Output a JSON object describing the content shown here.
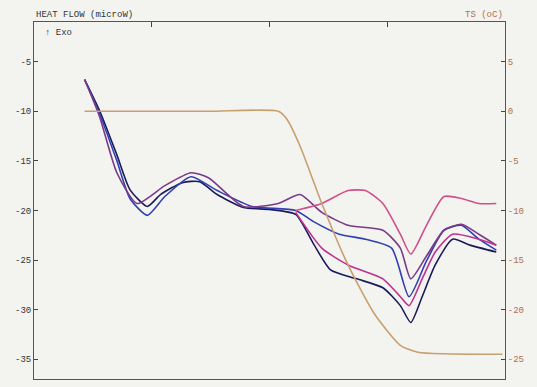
{
  "chart_data": {
    "type": "line",
    "ylabel": "HEAT FLOW (microW)",
    "y2label": "TS (oC)",
    "annotations": [
      "↑ Exo"
    ],
    "tick_labels": "y",
    "grid": false,
    "xlim": [
      0,
      108
    ],
    "xticks": [
      0,
      27,
      54,
      81,
      108
    ],
    "ylim": [
      -37,
      -1
    ],
    "yticks": [
      -5,
      -10,
      -15,
      -20,
      -25,
      -30,
      -35
    ],
    "y2lim": [
      -27,
      9
    ],
    "y2ticks": [
      5,
      0,
      -5,
      -10,
      -15,
      -20,
      -25
    ],
    "series": [
      {
        "color": "#c8a070",
        "axis": "y2",
        "x": [
          11.6,
          40,
          56,
          58,
          61,
          66,
          72,
          78,
          84,
          88,
          107.4
        ],
        "values": [
          0,
          0,
          0,
          -0.8,
          -3.5,
          -9.3,
          -15.5,
          -20.4,
          -23.6,
          -24.3,
          -24.5
        ]
      },
      {
        "color": "#1a1a5a",
        "x": [
          11.6,
          15,
          19,
          22,
          26,
          29,
          34,
          38,
          42,
          48,
          54,
          60,
          64,
          68,
          74,
          80,
          84,
          86.4,
          89,
          92,
          96,
          100,
          106
        ],
        "values": [
          -6.8,
          -9.9,
          -14.4,
          -17.9,
          -19.6,
          -18.4,
          -17.2,
          -17.1,
          -18.4,
          -19.7,
          -19.9,
          -20.4,
          -23.3,
          -26.0,
          -26.9,
          -27.8,
          -29.6,
          -31.3,
          -28.7,
          -25.5,
          -22.9,
          -23.5,
          -24.2
        ]
      },
      {
        "color": "#3040b0",
        "x": [
          11.6,
          15,
          19,
          22,
          26,
          30,
          36,
          42,
          50,
          60,
          64,
          70,
          76,
          82,
          86,
          90,
          94,
          98,
          102,
          106
        ],
        "values": [
          -6.8,
          -10.2,
          -15.0,
          -18.8,
          -20.5,
          -18.6,
          -16.6,
          -18.0,
          -19.6,
          -20.0,
          -21.1,
          -22.4,
          -22.9,
          -23.8,
          -28.7,
          -25.1,
          -22.0,
          -21.5,
          -22.9,
          -24.0
        ]
      },
      {
        "color": "#7a3a8a",
        "x": [
          11.6,
          15,
          19,
          23.6,
          30,
          36,
          40,
          48,
          56,
          61,
          66,
          72,
          80,
          84,
          86.4,
          90,
          94,
          98,
          102,
          106
        ],
        "values": [
          -6.8,
          -10.5,
          -16.2,
          -19.3,
          -17.5,
          -16.2,
          -16.7,
          -19.6,
          -19.3,
          -18.4,
          -20.2,
          -21.5,
          -22.0,
          -23.8,
          -26.9,
          -24.6,
          -22.0,
          -21.4,
          -22.4,
          -23.5
        ]
      },
      {
        "color": "#d0508a",
        "x": [
          60,
          66,
          72,
          76,
          80,
          84,
          86.4,
          90,
          94,
          98,
          102,
          106
        ],
        "values": [
          -20.0,
          -19.3,
          -18.0,
          -18.0,
          -19.3,
          -22.4,
          -24.4,
          -21.5,
          -18.6,
          -18.8,
          -19.3,
          -19.3
        ]
      },
      {
        "color": "#c03090",
        "x": [
          60,
          66,
          72,
          80,
          84,
          86,
          89,
          92,
          96,
          102,
          106
        ],
        "values": [
          -20.2,
          -23.8,
          -25.5,
          -26.9,
          -28.7,
          -29.6,
          -26.9,
          -24.2,
          -22.4,
          -22.9,
          -23.5
        ]
      }
    ]
  }
}
